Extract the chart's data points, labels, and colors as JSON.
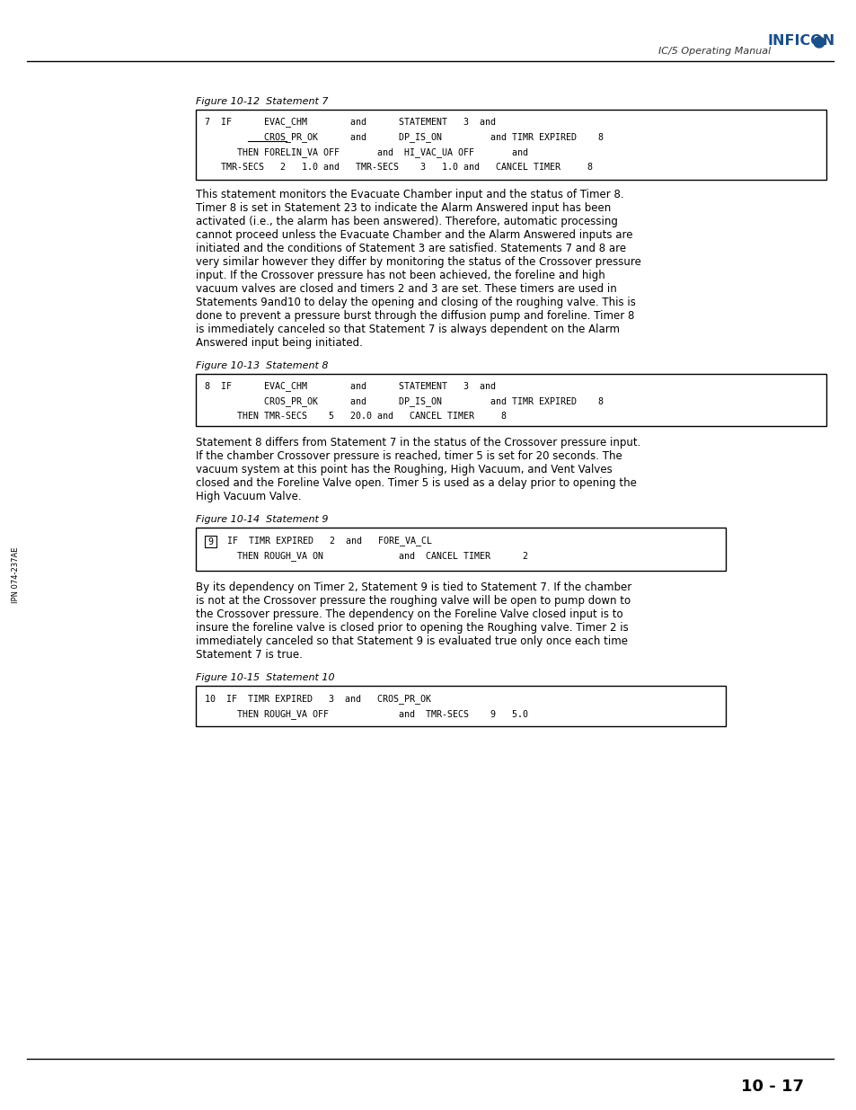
{
  "page_bg": "#ffffff",
  "header_text": "IC/5 Operating Manual",
  "page_number": "10 - 17",
  "left_margin_text": "IPN 074-237AE",
  "fig1_caption": "Figure 10-12  Statement 7",
  "fig1_lines": [
    "7  IF      EVAC_CHM        and      STATEMENT   3  and",
    "           CROS_PR_OK      and      DP_IS_ON         and TIMR EXPIRED    8",
    "      THEN FORELIN_VA OFF       and  HI_VAC_UA OFF       and",
    "   TMR-SECS   2   1.0 and   TMR-SECS    3   1.0 and   CANCEL TIMER     8"
  ],
  "fig2_caption": "Figure 10-13  Statement 8",
  "fig2_lines": [
    "8  IF      EVAC_CHM        and      STATEMENT   3  and",
    "           CROS_PR_OK      and      DP_IS_ON         and TIMR EXPIRED    8",
    "      THEN TMR-SECS    5   20.0 and   CANCEL TIMER     8"
  ],
  "para1": "This statement monitors the Evacuate Chamber input and the status of Timer 8.\nTimer 8 is set in Statement 23 to indicate the Alarm Answered input has been\nactivated (i.e., the alarm has been answered). Therefore, automatic processing\ncannot proceed unless the Evacuate Chamber and the Alarm Answered inputs are\ninitiated and the conditions of Statement 3 are satisfied. Statements 7 and 8 are\nvery similar however they differ by monitoring the status of the Crossover pressure\ninput. If the Crossover pressure has not been achieved, the foreline and high\nvacuum valves are closed and timers 2 and 3 are set. These timers are used in\nStatements 9and10 to delay the opening and closing of the roughing valve. This is\ndone to prevent a pressure burst through the diffusion pump and foreline. Timer 8\nis immediately canceled so that Statement 7 is always dependent on the Alarm\nAnswered input being initiated.",
  "para2": "Statement 8 differs from Statement 7 in the status of the Crossover pressure input.\nIf the chamber Crossover pressure is reached, timer 5 is set for 20 seconds. The\nvacuum system at this point has the Roughing, High Vacuum, and Vent Valves\nclosed and the Foreline Valve open. Timer 5 is used as a delay prior to opening the\nHigh Vacuum Valve.",
  "fig3_caption": "Figure 10-14  Statement 9",
  "fig3_lines": [
    "9  IF  TIMR EXPIRED   2  and   FORE_VA_CL",
    "      THEN ROUGH_VA ON              and  CANCEL TIMER      2"
  ],
  "para3": "By its dependency on Timer 2, Statement 9 is tied to Statement 7. If the chamber\nis not at the Crossover pressure the roughing valve will be open to pump down to\nthe Crossover pressure. The dependency on the Foreline Valve closed input is to\ninsure the foreline valve is closed prior to opening the Roughing valve. Timer 2 is\nimmediately canceled so that Statement 9 is evaluated true only once each time\nStatement 7 is true.",
  "fig4_caption": "Figure 10-15  Statement 10",
  "fig4_lines": [
    "10  IF  TIMR EXPIRED   3  and   CROS_PR_OK",
    "      THEN ROUGH_VA OFF             and  TMR-SECS    9   5.0"
  ]
}
